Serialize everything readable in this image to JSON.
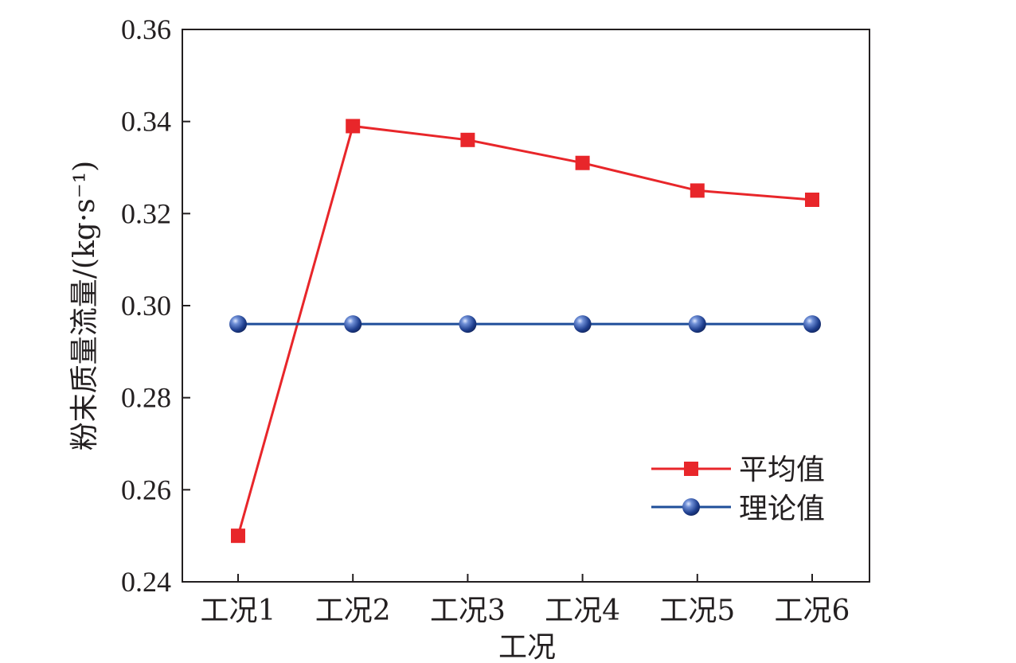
{
  "chart_data": {
    "type": "line",
    "categories": [
      "工况1",
      "工况2",
      "工况3",
      "工况4",
      "工况5",
      "工况6"
    ],
    "series": [
      {
        "name": "平均值",
        "values": [
          0.25,
          0.339,
          0.336,
          0.331,
          0.325,
          0.323
        ],
        "color": "#e8262a",
        "marker": "square"
      },
      {
        "name": "理论值",
        "values": [
          0.296,
          0.296,
          0.296,
          0.296,
          0.296,
          0.296
        ],
        "color": "#1f4e9a",
        "marker": "circle"
      }
    ],
    "xlabel": "工况",
    "ylabel": "粉末质量流量/(kg·s⁻¹)",
    "ylim": [
      0.24,
      0.36
    ],
    "yticks": [
      "0.24",
      "0.26",
      "0.28",
      "0.30",
      "0.32",
      "0.34",
      "0.36"
    ],
    "grid": false,
    "legend_position": "bottom-right"
  }
}
